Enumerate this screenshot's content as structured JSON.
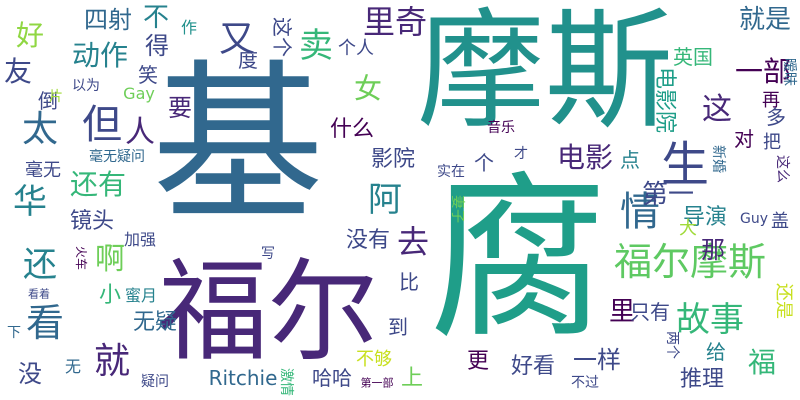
{
  "words": [
    {
      "text": "基",
      "color": "#31688e"
    },
    {
      "text": "腐",
      "color": "#1f9e89"
    },
    {
      "text": "摩斯",
      "color": "#21918c"
    },
    {
      "text": "福尔",
      "color": "#482878"
    },
    {
      "text": "福尔摩斯",
      "color": "#5ec962"
    },
    {
      "text": "生",
      "color": "#3e4989"
    },
    {
      "text": "情",
      "color": "#31688e"
    },
    {
      "text": "但",
      "color": "#3e4989"
    },
    {
      "text": "太",
      "color": "#31688e"
    },
    {
      "text": "看",
      "color": "#31688e"
    },
    {
      "text": "就",
      "color": "#482878"
    },
    {
      "text": "故事",
      "color": "#35b779"
    },
    {
      "text": "电影",
      "color": "#482878"
    },
    {
      "text": "里奇",
      "color": "#482878"
    },
    {
      "text": "卖",
      "color": "#35b779"
    },
    {
      "text": "又",
      "color": "#3e4989"
    },
    {
      "text": "阿",
      "color": "#26828e"
    },
    {
      "text": "女",
      "color": "#6ece58"
    },
    {
      "text": "华",
      "color": "#26828e"
    },
    {
      "text": "人",
      "color": "#482878"
    },
    {
      "text": "还有",
      "color": "#35b779"
    },
    {
      "text": "还",
      "color": "#26828e"
    },
    {
      "text": "啊",
      "color": "#6ece58"
    },
    {
      "text": "去",
      "color": "#482878"
    },
    {
      "text": "一部",
      "color": "#440154"
    },
    {
      "text": "就是",
      "color": "#31688e"
    },
    {
      "text": "这",
      "color": "#482878"
    },
    {
      "text": "第一",
      "color": "#3e4989"
    },
    {
      "text": "动作",
      "color": "#26828e"
    },
    {
      "text": "不",
      "color": "#26828e"
    },
    {
      "text": "友",
      "color": "#3e4989"
    },
    {
      "text": "好",
      "color": "#90d743"
    },
    {
      "text": "四射",
      "color": "#31688e"
    },
    {
      "text": "得",
      "color": "#3e4989"
    },
    {
      "text": "要",
      "color": "#482878"
    },
    {
      "text": "什么",
      "color": "#440154"
    },
    {
      "text": "影院",
      "color": "#3e4989"
    },
    {
      "text": "镜头",
      "color": "#3e4989"
    },
    {
      "text": "没有",
      "color": "#3e4989"
    },
    {
      "text": "导演",
      "color": "#26828e"
    },
    {
      "text": "那",
      "color": "#482878"
    },
    {
      "text": "福",
      "color": "#35b779"
    },
    {
      "text": "一样",
      "color": "#3e4989"
    },
    {
      "text": "推理",
      "color": "#3e4989"
    },
    {
      "text": "好看",
      "color": "#3e4989"
    },
    {
      "text": "更",
      "color": "#440154"
    },
    {
      "text": "上",
      "color": "#6ece58"
    },
    {
      "text": "没",
      "color": "#3e4989"
    },
    {
      "text": "小",
      "color": "#35b779"
    },
    {
      "text": "无疑",
      "color": "#31688e"
    },
    {
      "text": "哈哈",
      "color": "#3e4989"
    },
    {
      "text": "不够",
      "color": "#c8e020"
    },
    {
      "text": "到",
      "color": "#3e4989"
    },
    {
      "text": "比",
      "color": "#3e4989"
    },
    {
      "text": "里",
      "color": "#440154"
    },
    {
      "text": "只有",
      "color": "#3e4989"
    },
    {
      "text": "给",
      "color": "#26828e"
    },
    {
      "text": "Ritchie",
      "color": "#31688e"
    },
    {
      "text": "电影院",
      "color": "#1f9e89"
    },
    {
      "text": "英国",
      "color": "#35b779"
    },
    {
      "text": "点",
      "color": "#26828e"
    },
    {
      "text": "个",
      "color": "#3e4989"
    },
    {
      "text": "这个",
      "color": "#3e4989"
    },
    {
      "text": "作",
      "color": "#21918c"
    },
    {
      "text": "笑",
      "color": "#3e4989"
    },
    {
      "text": "度",
      "color": "#3e4989"
    },
    {
      "text": "个人",
      "color": "#3e4989"
    },
    {
      "text": "倒",
      "color": "#3e4989"
    },
    {
      "text": "以为",
      "color": "#3e4989"
    },
    {
      "text": "Gay",
      "color": "#6ece58"
    },
    {
      "text": "片",
      "color": "#a0da39"
    },
    {
      "text": "毫无",
      "color": "#3e4989"
    },
    {
      "text": "毫无疑问",
      "color": "#31688e"
    },
    {
      "text": "加强",
      "color": "#3e4989"
    },
    {
      "text": "大",
      "color": "#a0da39"
    },
    {
      "text": "再",
      "color": "#440154"
    },
    {
      "text": "多",
      "color": "#3e4989"
    },
    {
      "text": "对",
      "color": "#440154"
    },
    {
      "text": "把",
      "color": "#3e4989"
    },
    {
      "text": "暧昧",
      "color": "#31688e"
    },
    {
      "text": "新婚",
      "color": "#31688e"
    },
    {
      "text": "这么",
      "color": "#482878"
    },
    {
      "text": "盖",
      "color": "#3e4989"
    },
    {
      "text": "Guy",
      "color": "#3e4989"
    },
    {
      "text": "音乐",
      "color": "#440154"
    },
    {
      "text": "实在",
      "color": "#3e4989"
    },
    {
      "text": "才",
      "color": "#3e4989"
    },
    {
      "text": "妻子",
      "color": "#6ece58"
    },
    {
      "text": "写",
      "color": "#3e4989"
    },
    {
      "text": "火车",
      "color": "#440154"
    },
    {
      "text": "看着",
      "color": "#3e4989"
    },
    {
      "text": "蜜月",
      "color": "#26828e"
    },
    {
      "text": "下",
      "color": "#31688e"
    },
    {
      "text": "无",
      "color": "#31688e"
    },
    {
      "text": "疑问",
      "color": "#3e4989"
    },
    {
      "text": "激情",
      "color": "#35b779"
    },
    {
      "text": "第一部",
      "color": "#440154"
    },
    {
      "text": "两个",
      "color": "#3e4989"
    },
    {
      "text": "不过",
      "color": "#3e4989"
    },
    {
      "text": "还是",
      "color": "#c8e020"
    }
  ]
}
